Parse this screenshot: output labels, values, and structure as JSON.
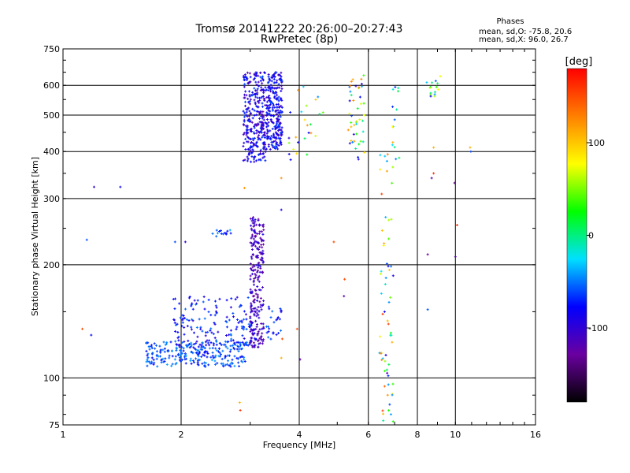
{
  "chart_data": {
    "type": "scatter",
    "title": "Tromsø 20141222 20:26:00–20:27:43",
    "subtitle": "RwPretec (8p)",
    "xlabel": "Frequency [MHz]",
    "ylabel": "Stationary phase Virtual Height [km]",
    "x_scale": "log",
    "y_scale": "log",
    "xlim": [
      1,
      16
    ],
    "ylim": [
      75,
      750
    ],
    "x_ticks": [
      1,
      2,
      4,
      6,
      8,
      10,
      16
    ],
    "x_tick_labels": [
      "1",
      "2",
      "4",
      "6",
      "8",
      "10",
      "16"
    ],
    "y_ticks": [
      75,
      100,
      200,
      300,
      400,
      500,
      600,
      750
    ],
    "y_tick_labels": [
      "75",
      "100",
      "200",
      "300",
      "400",
      "500",
      "600",
      "750"
    ],
    "grid": true,
    "stats": {
      "heading": "Phases",
      "line1": "mean, sd,O: -75.8, 20.6",
      "line2": "mean, sd,X:  96.0, 26.7"
    },
    "colorbar": {
      "label": "[deg]",
      "range": [
        -180,
        180
      ],
      "ticks": [
        100,
        0,
        -100
      ],
      "tick_labels": [
        "100",
        "0",
        "-100"
      ],
      "colormap": [
        "#000000",
        "#6a00a0",
        "#0000ff",
        "#00e0ff",
        "#00ff00",
        "#ffff00",
        "#ff8000",
        "#ff0000"
      ]
    },
    "series": [
      {
        "clusters": [
          {
            "f": [
              1.63,
              2.95
            ],
            "h": [
              107,
              125
            ],
            "n": 260,
            "phase": [
              -80,
              -40
            ]
          },
          {
            "f": [
              1.9,
              3.2
            ],
            "h": [
              120,
              165
            ],
            "n": 170,
            "phase": [
              -100,
              -50
            ]
          },
          {
            "f": [
              3.0,
              3.25
            ],
            "h": [
              120,
              270
            ],
            "n": 230,
            "phase": [
              -130,
              -90
            ]
          },
          {
            "f": [
              3.3,
              3.6
            ],
            "h": [
              125,
              155
            ],
            "n": 25,
            "phase": [
              -90,
              -50
            ]
          },
          {
            "f": [
              2.88,
              3.28
            ],
            "h": [
              375,
              650
            ],
            "n": 300,
            "phase": [
              -120,
              -60
            ]
          },
          {
            "f": [
              3.3,
              3.62
            ],
            "h": [
              405,
              650
            ],
            "n": 240,
            "phase": [
              -110,
              -60
            ]
          },
          {
            "f": [
              3.75,
              4.6
            ],
            "h": [
              380,
              600
            ],
            "n": 25,
            "phase": [
              -100,
              130
            ]
          },
          {
            "f": [
              5.3,
              5.9
            ],
            "h": [
              380,
              640
            ],
            "n": 45,
            "phase": [
              -100,
              130
            ]
          },
          {
            "f": [
              6.4,
              6.95
            ],
            "h": [
              75,
              400
            ],
            "n": 55,
            "phase": [
              -100,
              170
            ]
          },
          {
            "f": [
              6.9,
              7.2
            ],
            "h": [
              380,
              600
            ],
            "n": 14,
            "phase": [
              -90,
              110
            ]
          },
          {
            "f": [
              8.4,
              9.2
            ],
            "h": [
              560,
              650
            ],
            "n": 15,
            "phase": [
              -90,
              80
            ]
          },
          {
            "f": [
              2.4,
              2.7
            ],
            "h": [
              238,
              248
            ],
            "n": 14,
            "phase": [
              -80,
              -40
            ]
          }
        ],
        "points": [
          {
            "f": 1.2,
            "h": 322,
            "phase": -100
          },
          {
            "f": 1.4,
            "h": 322,
            "phase": -80
          },
          {
            "f": 1.15,
            "h": 233,
            "phase": -60
          },
          {
            "f": 1.93,
            "h": 230,
            "phase": -60
          },
          {
            "f": 2.05,
            "h": 230,
            "phase": -100
          },
          {
            "f": 1.12,
            "h": 135,
            "phase": 150
          },
          {
            "f": 1.18,
            "h": 130,
            "phase": -80
          },
          {
            "f": 2.83,
            "h": 82,
            "phase": 160
          },
          {
            "f": 2.82,
            "h": 86,
            "phase": 110
          },
          {
            "f": 2.9,
            "h": 320,
            "phase": 120
          },
          {
            "f": 3.6,
            "h": 280,
            "phase": -90
          },
          {
            "f": 3.6,
            "h": 340,
            "phase": 120
          },
          {
            "f": 3.95,
            "h": 135,
            "phase": 150
          },
          {
            "f": 4.02,
            "h": 112,
            "phase": -120
          },
          {
            "f": 4.9,
            "h": 230,
            "phase": 150
          },
          {
            "f": 5.22,
            "h": 183,
            "phase": 150
          },
          {
            "f": 5.2,
            "h": 165,
            "phase": -120
          },
          {
            "f": 3.62,
            "h": 127,
            "phase": 150
          },
          {
            "f": 3.6,
            "h": 113,
            "phase": 110
          },
          {
            "f": 9.95,
            "h": 330,
            "phase": -140
          },
          {
            "f": 10.0,
            "h": 210,
            "phase": -120
          },
          {
            "f": 10.1,
            "h": 255,
            "phase": 160
          },
          {
            "f": 8.5,
            "h": 213,
            "phase": -130
          },
          {
            "f": 8.5,
            "h": 152,
            "phase": -60
          },
          {
            "f": 8.8,
            "h": 350,
            "phase": 160
          },
          {
            "f": 8.7,
            "h": 340,
            "phase": -120
          },
          {
            "f": 8.8,
            "h": 410,
            "phase": 110
          },
          {
            "f": 10.9,
            "h": 410,
            "phase": 110
          },
          {
            "f": 10.95,
            "h": 400,
            "phase": -60
          },
          {
            "f": 6.6,
            "h": 150,
            "phase": -80
          },
          {
            "f": 6.65,
            "h": 115,
            "phase": -100
          },
          {
            "f": 6.7,
            "h": 103,
            "phase": -120
          },
          {
            "f": 6.6,
            "h": 95,
            "phase": 140
          },
          {
            "f": 6.72,
            "h": 90,
            "phase": 120
          },
          {
            "f": 6.8,
            "h": 85,
            "phase": -60
          },
          {
            "f": 6.85,
            "h": 80,
            "phase": -40
          }
        ]
      }
    ]
  }
}
